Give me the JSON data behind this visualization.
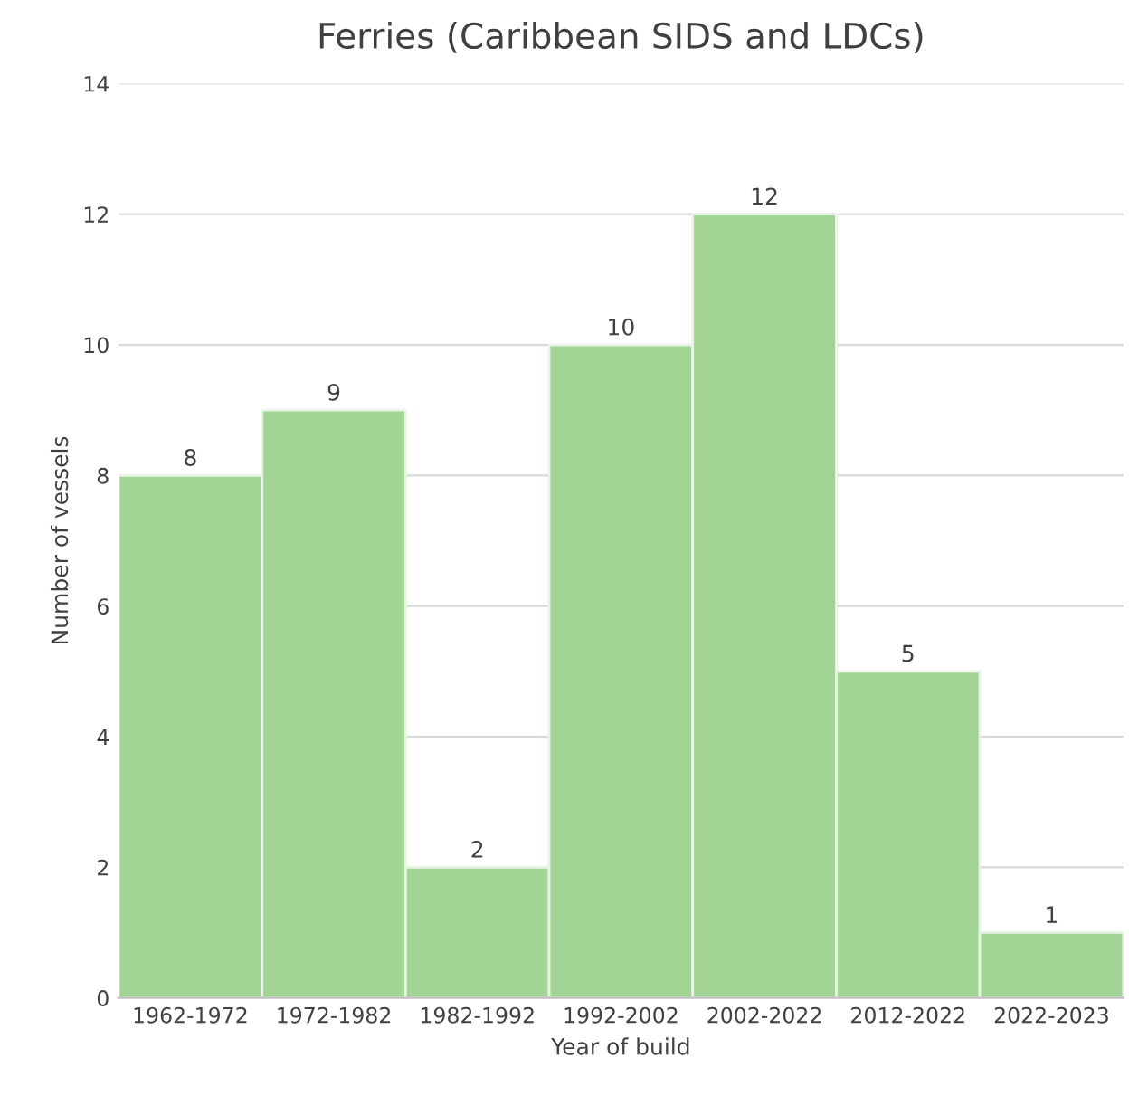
{
  "chart_data": {
    "type": "bar",
    "title": "Ferries (Caribbean SIDS and LDCs)",
    "xlabel": "Year of build",
    "ylabel": "Number of vessels",
    "categories": [
      "1962-1972",
      "1972-1982",
      "1982-1992",
      "1992-2002",
      "2002-2022",
      "2012-2022",
      "2022-2023"
    ],
    "values": [
      8,
      9,
      2,
      10,
      12,
      5,
      1
    ],
    "color": "#a2d595",
    "ylim": [
      0,
      14
    ],
    "yticks": [
      0,
      2,
      4,
      6,
      8,
      10,
      12,
      14
    ],
    "grid": "y",
    "data_labels": true
  }
}
